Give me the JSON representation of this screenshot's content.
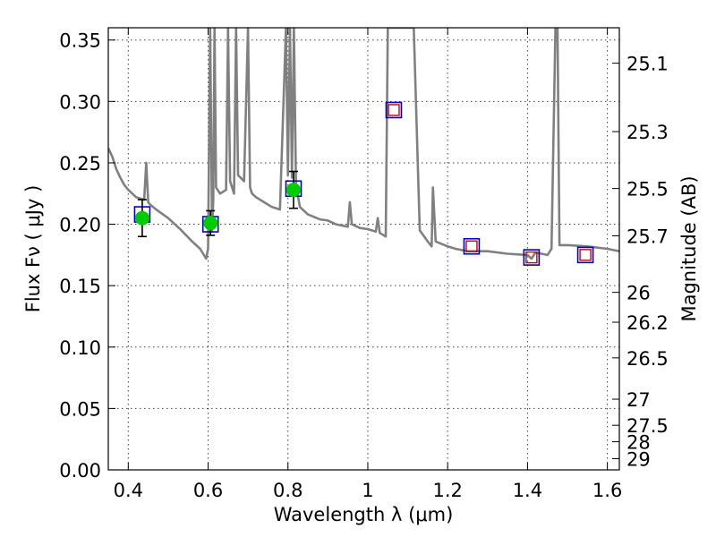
{
  "chart_data": {
    "type": "scatter",
    "xlabel": "Wavelength  λ (μm)",
    "ylabel": "Flux  Fν  ( μJy )",
    "ylabel_right": "Magnitude (AB)",
    "xlim": [
      0.35,
      1.63
    ],
    "ylim": [
      0.0,
      0.36
    ],
    "x_ticks": [
      0.4,
      0.6,
      0.8,
      1.0,
      1.2,
      1.4,
      1.6
    ],
    "x_tick_labels": [
      "0.4",
      "0.6",
      "0.8",
      "1",
      "1.2",
      "1.4",
      "1.6"
    ],
    "y_ticks": [
      0.0,
      0.05,
      0.1,
      0.15,
      0.2,
      0.25,
      0.3,
      0.35
    ],
    "y_tick_labels": [
      "0.00",
      "0.05",
      "0.10",
      "0.15",
      "0.20",
      "0.25",
      "0.30",
      "0.35"
    ],
    "right_ticks": [
      {
        "label": "25.1",
        "mag": 25.1
      },
      {
        "label": "25.3",
        "mag": 25.3
      },
      {
        "label": "25.5",
        "mag": 25.5
      },
      {
        "label": "25.7",
        "mag": 25.7
      },
      {
        "label": "26",
        "mag": 26.0
      },
      {
        "label": "26.2",
        "mag": 26.2
      },
      {
        "label": "26.5",
        "mag": 26.5
      },
      {
        "label": "27",
        "mag": 27.0
      },
      {
        "label": "27.5",
        "mag": 27.5
      },
      {
        "label": "28",
        "mag": 28.0
      },
      {
        "label": "29",
        "mag": 29.0
      }
    ],
    "grid": true,
    "observed": {
      "x": [
        0.435,
        0.606,
        0.814
      ],
      "y": [
        0.205,
        0.201,
        0.228
      ],
      "yerr": [
        0.015,
        0.01,
        0.015
      ],
      "color": "#00cc00"
    },
    "model_boxes": {
      "x": [
        0.435,
        0.606,
        0.814,
        1.065,
        1.26,
        1.41,
        1.545
      ],
      "y": [
        0.208,
        0.2,
        0.229,
        0.293,
        0.182,
        0.173,
        0.175
      ],
      "color": "#0000cc"
    },
    "predicted": {
      "x": [
        1.065,
        1.26,
        1.41,
        1.545
      ],
      "y": [
        0.293,
        0.182,
        0.173,
        0.175
      ],
      "color": "#cc0000"
    },
    "template_spectrum": {
      "color": "#808080",
      "x": [
        0.35,
        0.36,
        0.37,
        0.38,
        0.39,
        0.4,
        0.42,
        0.44,
        0.445,
        0.45,
        0.455,
        0.47,
        0.5,
        0.53,
        0.56,
        0.58,
        0.595,
        0.6,
        0.605,
        0.61,
        0.613,
        0.616,
        0.62,
        0.63,
        0.645,
        0.65,
        0.655,
        0.66,
        0.665,
        0.67,
        0.675,
        0.69,
        0.7,
        0.705,
        0.71,
        0.72,
        0.74,
        0.76,
        0.78,
        0.795,
        0.8,
        0.805,
        0.81,
        0.815,
        0.82,
        0.83,
        0.85,
        0.88,
        0.9,
        0.92,
        0.95,
        0.955,
        0.96,
        0.98,
        1.0,
        1.02,
        1.025,
        1.03,
        1.045,
        1.05,
        1.055,
        1.06,
        1.065,
        1.07,
        1.08,
        1.1,
        1.103,
        1.106,
        1.109,
        1.112,
        1.115,
        1.13,
        1.15,
        1.16,
        1.163,
        1.17,
        1.2,
        1.22,
        1.25,
        1.3,
        1.35,
        1.4,
        1.41,
        1.42,
        1.45,
        1.46,
        1.47,
        1.475,
        1.48,
        1.49,
        1.5,
        1.55,
        1.6,
        1.63
      ],
      "y": [
        0.262,
        0.255,
        0.245,
        0.238,
        0.232,
        0.228,
        0.222,
        0.22,
        0.25,
        0.218,
        0.216,
        0.212,
        0.205,
        0.196,
        0.186,
        0.18,
        0.172,
        0.18,
        0.36,
        0.195,
        0.22,
        0.36,
        0.23,
        0.225,
        0.228,
        0.36,
        0.235,
        0.23,
        0.225,
        0.36,
        0.24,
        0.235,
        0.36,
        0.23,
        0.225,
        0.222,
        0.218,
        0.214,
        0.212,
        0.36,
        0.24,
        0.36,
        0.238,
        0.36,
        0.232,
        0.214,
        0.208,
        0.204,
        0.203,
        0.2,
        0.198,
        0.218,
        0.2,
        0.197,
        0.196,
        0.194,
        0.205,
        0.193,
        0.19,
        0.36,
        0.36,
        0.36,
        0.36,
        0.36,
        0.36,
        0.36,
        0.36,
        0.36,
        0.36,
        0.36,
        0.36,
        0.195,
        0.186,
        0.182,
        0.23,
        0.186,
        0.182,
        0.18,
        0.178,
        0.178,
        0.176,
        0.175,
        0.172,
        0.177,
        0.175,
        0.18,
        0.36,
        0.36,
        0.183,
        0.183,
        0.183,
        0.182,
        0.18,
        0.178
      ]
    }
  }
}
